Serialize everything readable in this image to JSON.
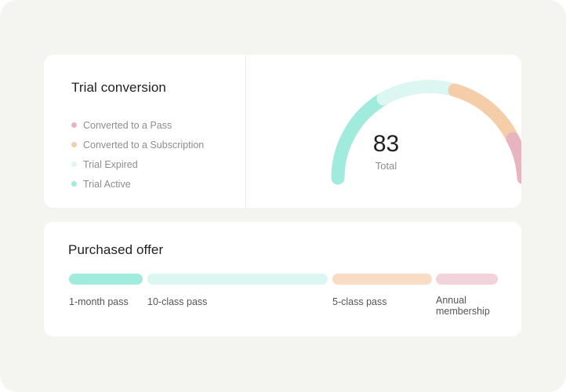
{
  "trial_conversion": {
    "title": "Trial conversion",
    "legend": [
      {
        "label": "Converted to a Pass",
        "color": "#e8b4c0"
      },
      {
        "label": "Converted to a Subscription",
        "color": "#f5cda8"
      },
      {
        "label": "Trial Expired",
        "color": "#dcf6f1"
      },
      {
        "label": "Trial Active",
        "color": "#a0ebdc"
      }
    ],
    "gauge": {
      "total_value": "83",
      "total_label": "Total"
    }
  },
  "purchased_offer": {
    "title": "Purchased offer",
    "offers": [
      {
        "label": "1-month pass",
        "color": "#a0ebdc"
      },
      {
        "label": "10-class pass",
        "color": "#dcf6f1"
      },
      {
        "label": "5-class pass",
        "color": "#f8dcc4"
      },
      {
        "label": "Annual membership",
        "color": "#f2d3dc"
      }
    ]
  }
}
